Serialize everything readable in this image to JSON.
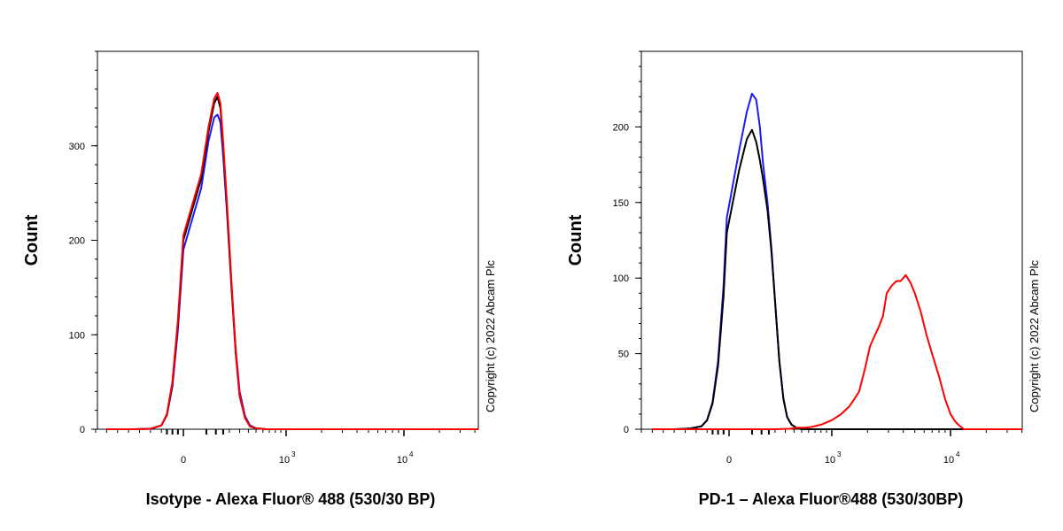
{
  "chart_data": [
    {
      "type": "line",
      "title": "",
      "xlabel": "Isotype - Alexa Fluor® 488 (530/30 BP)",
      "ylabel": "Count",
      "copyright": "Copyright (c) 2022 Abcam Plc",
      "x_scale": "biexponential",
      "xlim": [
        -900,
        50000
      ],
      "ylim": [
        0,
        400
      ],
      "yticks": [
        0,
        100,
        200,
        300
      ],
      "xticks": [
        {
          "value": 0,
          "label": "0",
          "sup": ""
        },
        {
          "value": 1000,
          "label": "10",
          "sup": "3"
        },
        {
          "value": 10000,
          "label": "10",
          "sup": "4"
        }
      ],
      "grid": false,
      "series": [
        {
          "color": "#1a1aff",
          "x": [
            -700,
            -450,
            -300,
            -200,
            -150,
            -100,
            -50,
            0,
            30,
            60,
            90,
            110,
            130,
            150,
            180,
            220,
            260,
            300,
            360,
            420,
            500,
            650,
            1000,
            3000,
            10000,
            50000
          ],
          "y": [
            0,
            0,
            0.5,
            4,
            15,
            45,
            105,
            190,
            255,
            305,
            330,
            333,
            325,
            290,
            230,
            150,
            85,
            40,
            14,
            4,
            1,
            0,
            0,
            0,
            0,
            0
          ]
        },
        {
          "color": "#000000",
          "x": [
            -700,
            -450,
            -300,
            -200,
            -150,
            -100,
            -50,
            0,
            30,
            60,
            90,
            110,
            130,
            150,
            180,
            220,
            260,
            300,
            360,
            420,
            500,
            650,
            1000,
            3000,
            10000,
            50000
          ],
          "y": [
            0,
            0,
            0.5,
            4,
            15,
            48,
            112,
            200,
            265,
            315,
            345,
            352,
            340,
            300,
            235,
            150,
            80,
            35,
            12,
            3,
            1,
            0,
            0,
            0,
            0,
            0
          ]
        },
        {
          "color": "#ff0000",
          "x": [
            -700,
            -450,
            -300,
            -200,
            -150,
            -100,
            -50,
            0,
            30,
            60,
            90,
            110,
            130,
            150,
            180,
            220,
            260,
            300,
            360,
            420,
            500,
            650,
            1000,
            3000,
            10000,
            50000
          ],
          "y": [
            0,
            0,
            0.5,
            4,
            16,
            50,
            115,
            205,
            270,
            320,
            350,
            356,
            345,
            305,
            240,
            155,
            82,
            36,
            12,
            3,
            1,
            0,
            0,
            0,
            0,
            0
          ]
        }
      ]
    },
    {
      "type": "line",
      "title": "",
      "xlabel": "PD-1 – Alexa Fluor®488 (530/30BP)",
      "ylabel": "Count",
      "copyright": "Copyright (c) 2022 Abcam Plc",
      "x_scale": "biexponential",
      "xlim": [
        -900,
        50000
      ],
      "ylim": [
        0,
        250
      ],
      "yticks": [
        0,
        50,
        100,
        150,
        200
      ],
      "xticks": [
        {
          "value": 0,
          "label": "0",
          "sup": ""
        },
        {
          "value": 1000,
          "label": "10",
          "sup": "3"
        },
        {
          "value": 10000,
          "label": "10",
          "sup": "4"
        }
      ],
      "grid": false,
      "series": [
        {
          "color": "#1a1aff",
          "x": [
            -700,
            -500,
            -350,
            -250,
            -200,
            -150,
            -100,
            -50,
            -20,
            10,
            30,
            50,
            70,
            90,
            110,
            140,
            170,
            200,
            240,
            280,
            320,
            370,
            430,
            500,
            700,
            1000,
            3000,
            10000,
            50000
          ],
          "y": [
            0,
            0,
            0.5,
            2,
            6,
            18,
            45,
            95,
            140,
            185,
            210,
            222,
            218,
            200,
            175,
            150,
            120,
            85,
            45,
            20,
            8,
            3,
            1,
            0,
            0,
            0,
            0,
            0,
            0
          ]
        },
        {
          "color": "#000000",
          "x": [
            -700,
            -500,
            -350,
            -250,
            -200,
            -150,
            -100,
            -50,
            -20,
            10,
            30,
            50,
            70,
            90,
            110,
            140,
            170,
            200,
            240,
            280,
            320,
            370,
            430,
            500,
            700,
            1000,
            3000,
            10000,
            50000
          ],
          "y": [
            0,
            0,
            0.5,
            2,
            6,
            17,
            42,
            88,
            130,
            172,
            192,
            198,
            190,
            178,
            165,
            145,
            118,
            85,
            45,
            20,
            8,
            3,
            1,
            0,
            0,
            0,
            0,
            0,
            0
          ]
        },
        {
          "color": "#ff0000",
          "x": [
            -700,
            -200,
            0,
            200,
            350,
            450,
            550,
            650,
            800,
            1000,
            1200,
            1400,
            1550,
            1700,
            1900,
            2100,
            2300,
            2500,
            2700,
            2900,
            3200,
            3500,
            3800,
            4200,
            4600,
            5000,
            5600,
            6300,
            7000,
            8000,
            9000,
            10000,
            11000,
            12000,
            13000,
            20000,
            50000
          ],
          "y": [
            0,
            0,
            0,
            0,
            0.3,
            1,
            1,
            1.5,
            3,
            6,
            10,
            15,
            20,
            25,
            40,
            55,
            62,
            68,
            75,
            90,
            95,
            98,
            98,
            102,
            97,
            90,
            78,
            62,
            50,
            35,
            20,
            10,
            5,
            2,
            0,
            0,
            0
          ]
        }
      ]
    }
  ]
}
